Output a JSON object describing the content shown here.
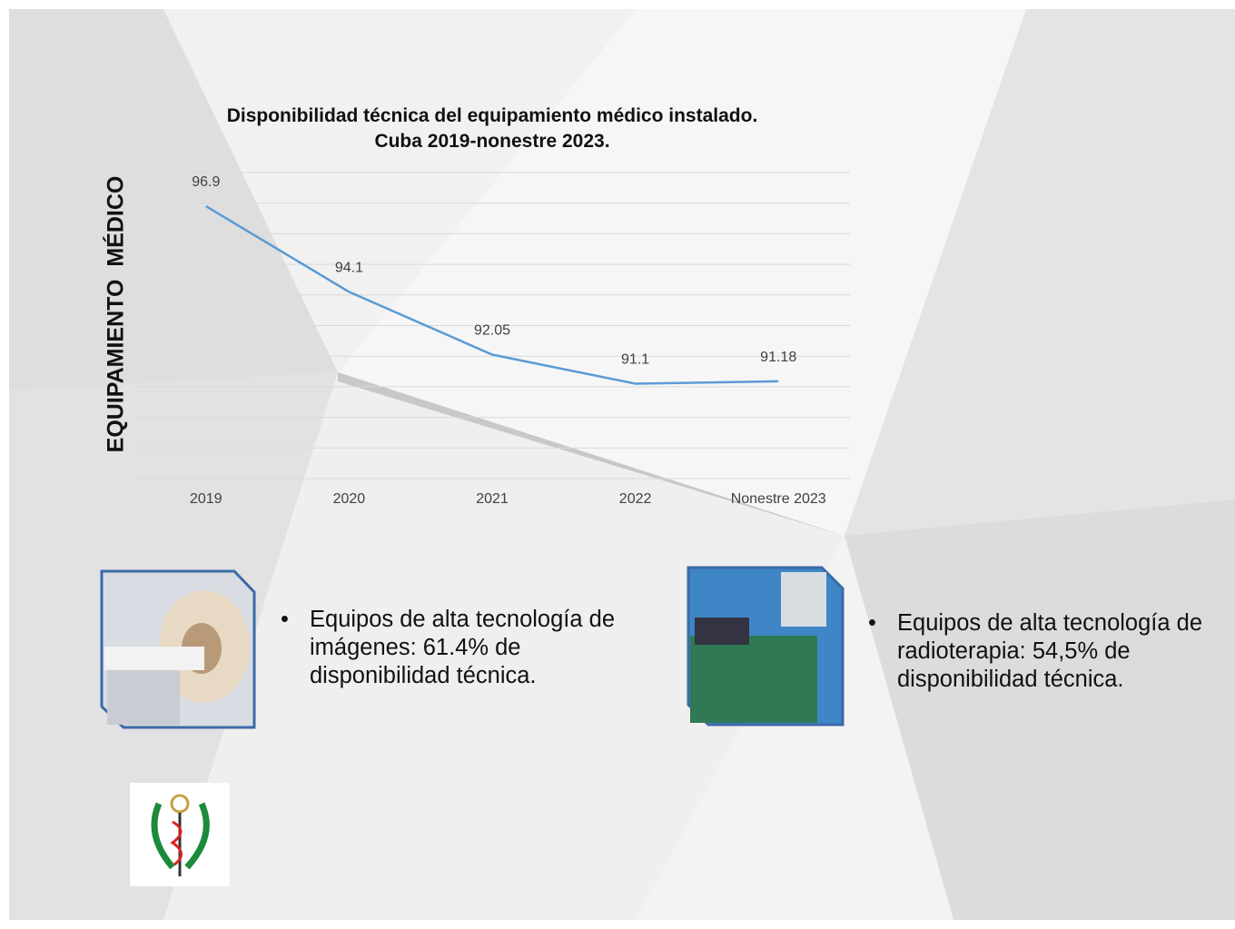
{
  "chart_data": {
    "type": "line",
    "title": "Disponibilidad técnica del equipamiento médico instalado. Cuba 2019-nonestre 2023.",
    "y_label": "EQUIPAMIENTO  MÉDICO",
    "categories": [
      "2019",
      "2020",
      "2021",
      "2022",
      "Nonestre 2023"
    ],
    "values": [
      96.9,
      94.1,
      92.05,
      91.1,
      91.18
    ],
    "color": "#5b9bd5",
    "ylim": [
      88,
      98
    ],
    "yticks": [
      88,
      89,
      90,
      91,
      92,
      93,
      94,
      95,
      96,
      97,
      98
    ],
    "grid": true
  },
  "bullets": [
    "Equipos de alta tecnología de imágenes: 61.4% de disponibilidad  técnica.",
    "Equipos de alta tecnología de radioterapia: 54,5% de disponibilidad  técnica."
  ]
}
